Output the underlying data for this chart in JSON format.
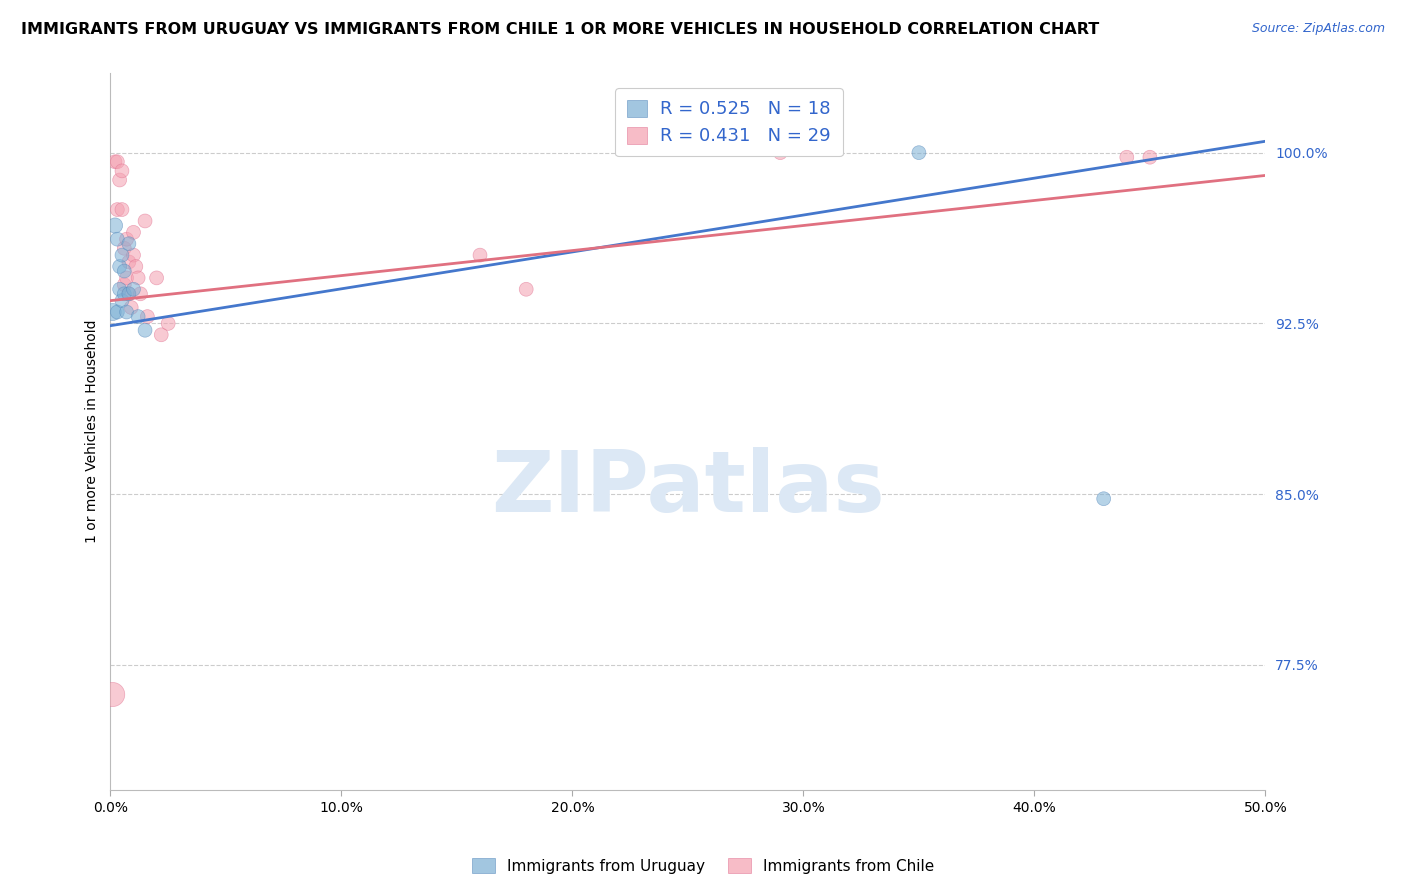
{
  "title": "IMMIGRANTS FROM URUGUAY VS IMMIGRANTS FROM CHILE 1 OR MORE VEHICLES IN HOUSEHOLD CORRELATION CHART",
  "source": "Source: ZipAtlas.com",
  "ylabel": "1 or more Vehicles in Household",
  "ytick_labels": [
    "77.5%",
    "85.0%",
    "92.5%",
    "100.0%"
  ],
  "ytick_values": [
    0.775,
    0.85,
    0.925,
    1.0
  ],
  "xlim": [
    0.0,
    0.5
  ],
  "ylim": [
    0.72,
    1.035
  ],
  "background_color": "#ffffff",
  "uruguay_color": "#7bafd4",
  "chile_color": "#f4a0b0",
  "uruguay_edge_color": "#5588bb",
  "chile_edge_color": "#e07090",
  "uruguay_line_color": "#4477cc",
  "chile_line_color": "#e07080",
  "uruguay_label": "Immigrants from Uruguay",
  "chile_label": "Immigrants from Chile",
  "uruguay_R": 0.525,
  "uruguay_N": 18,
  "chile_R": 0.431,
  "chile_N": 29,
  "legend_text_color": "#3366cc",
  "uruguay_scatter_x": [
    0.001,
    0.002,
    0.003,
    0.003,
    0.004,
    0.004,
    0.005,
    0.005,
    0.006,
    0.006,
    0.007,
    0.008,
    0.008,
    0.01,
    0.012,
    0.015,
    0.35,
    0.43
  ],
  "uruguay_scatter_y": [
    0.93,
    0.968,
    0.962,
    0.93,
    0.95,
    0.94,
    0.955,
    0.935,
    0.948,
    0.938,
    0.93,
    0.96,
    0.938,
    0.94,
    0.928,
    0.922,
    1.0,
    0.848
  ],
  "uruguay_scatter_size": [
    150,
    120,
    100,
    100,
    100,
    100,
    100,
    100,
    100,
    100,
    100,
    100,
    100,
    100,
    100,
    100,
    100,
    100
  ],
  "chile_scatter_x": [
    0.001,
    0.002,
    0.003,
    0.003,
    0.004,
    0.005,
    0.005,
    0.006,
    0.006,
    0.007,
    0.007,
    0.008,
    0.008,
    0.009,
    0.01,
    0.01,
    0.011,
    0.012,
    0.013,
    0.015,
    0.016,
    0.02,
    0.022,
    0.025,
    0.16,
    0.18,
    0.29,
    0.44,
    0.45
  ],
  "chile_scatter_y": [
    0.762,
    0.996,
    0.996,
    0.975,
    0.988,
    0.992,
    0.975,
    0.958,
    0.942,
    0.962,
    0.945,
    0.952,
    0.938,
    0.932,
    0.965,
    0.955,
    0.95,
    0.945,
    0.938,
    0.97,
    0.928,
    0.945,
    0.92,
    0.925,
    0.955,
    0.94,
    1.0,
    0.998,
    0.998
  ],
  "chile_scatter_size": [
    300,
    100,
    100,
    100,
    100,
    100,
    100,
    100,
    100,
    100,
    100,
    100,
    100,
    100,
    100,
    100,
    100,
    100,
    100,
    100,
    100,
    100,
    100,
    100,
    100,
    100,
    100,
    100,
    100
  ],
  "grid_color": "#cccccc",
  "title_fontsize": 11.5,
  "axis_label_fontsize": 10,
  "tick_fontsize": 10,
  "watermark_text": "ZIPatlas",
  "watermark_color": "#dce8f5",
  "xticks": [
    0.0,
    0.1,
    0.2,
    0.3,
    0.4,
    0.5
  ],
  "xtick_labels": [
    "0.0%",
    "10.0%",
    "20.0%",
    "30.0%",
    "40.0%",
    "50.0%"
  ]
}
